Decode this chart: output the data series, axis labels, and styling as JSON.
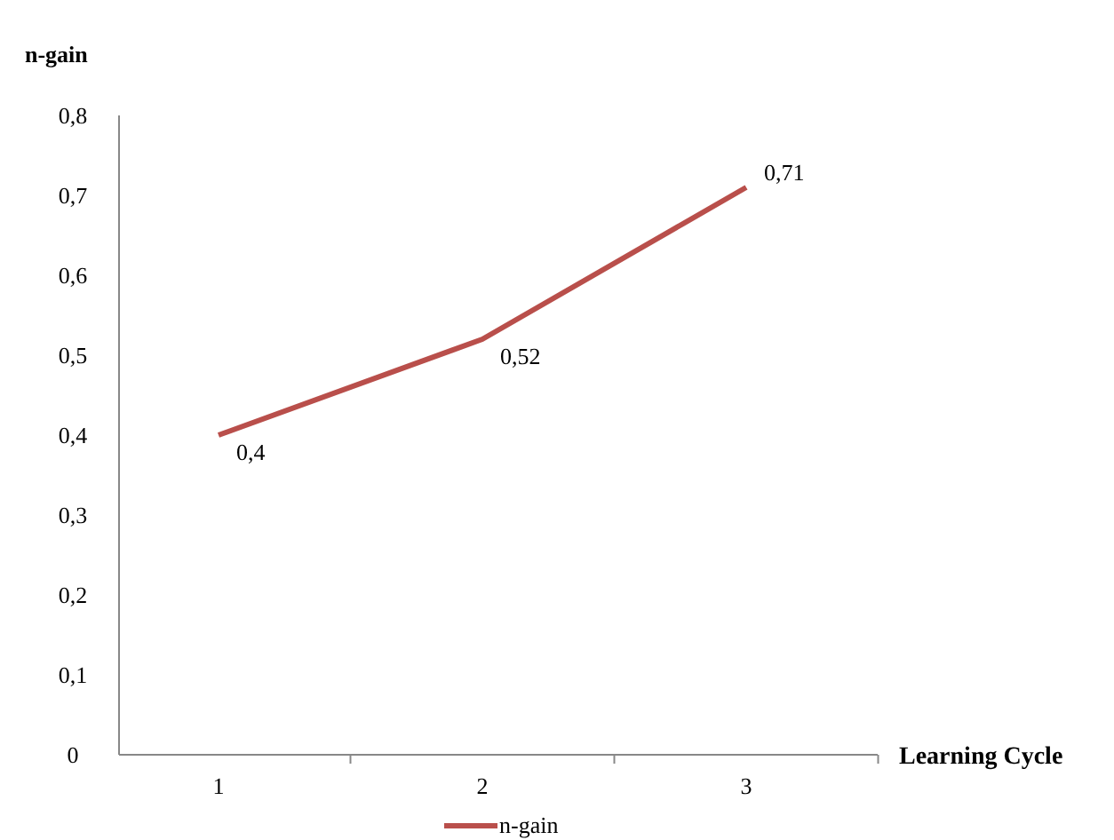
{
  "chart_data": {
    "type": "line",
    "xlabel": "Learning Cycle",
    "ylabel": "n-gain",
    "categories": [
      "1",
      "2",
      "3"
    ],
    "series": [
      {
        "name": "n-gain",
        "color": "#b94f4b",
        "values": [
          0.4,
          0.52,
          0.71
        ],
        "value_labels": [
          "0,4",
          "0,52",
          "0,71"
        ]
      }
    ],
    "ylim": [
      0,
      0.8
    ],
    "yticks": [
      0,
      {
        "value": 0.1,
        "label": "0,1"
      },
      {
        "value": 0.2,
        "label": "0,2"
      },
      {
        "value": 0.3,
        "label": "0,3"
      },
      {
        "value": 0.4,
        "label": "0,4"
      },
      {
        "value": 0.5,
        "label": "0,5"
      },
      {
        "value": 0.6,
        "label": "0,6"
      },
      {
        "value": 0.7,
        "label": "0,7"
      },
      {
        "value": 0.8,
        "label": "0,8"
      }
    ],
    "grid": false,
    "legend": "bottom",
    "marker": "none",
    "line_style": "solid"
  }
}
